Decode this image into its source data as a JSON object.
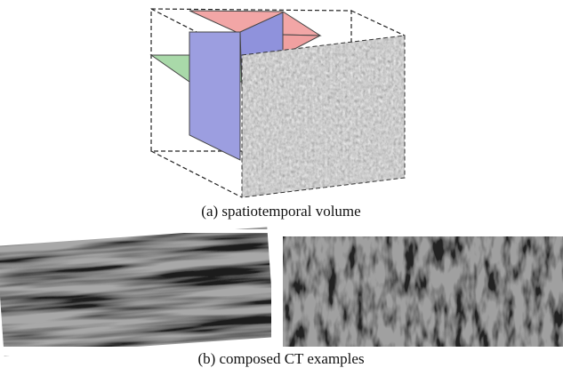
{
  "figure": {
    "caption_a": "(a) spatiotemporal volume",
    "caption_b": "(b) composed CT examples"
  }
}
